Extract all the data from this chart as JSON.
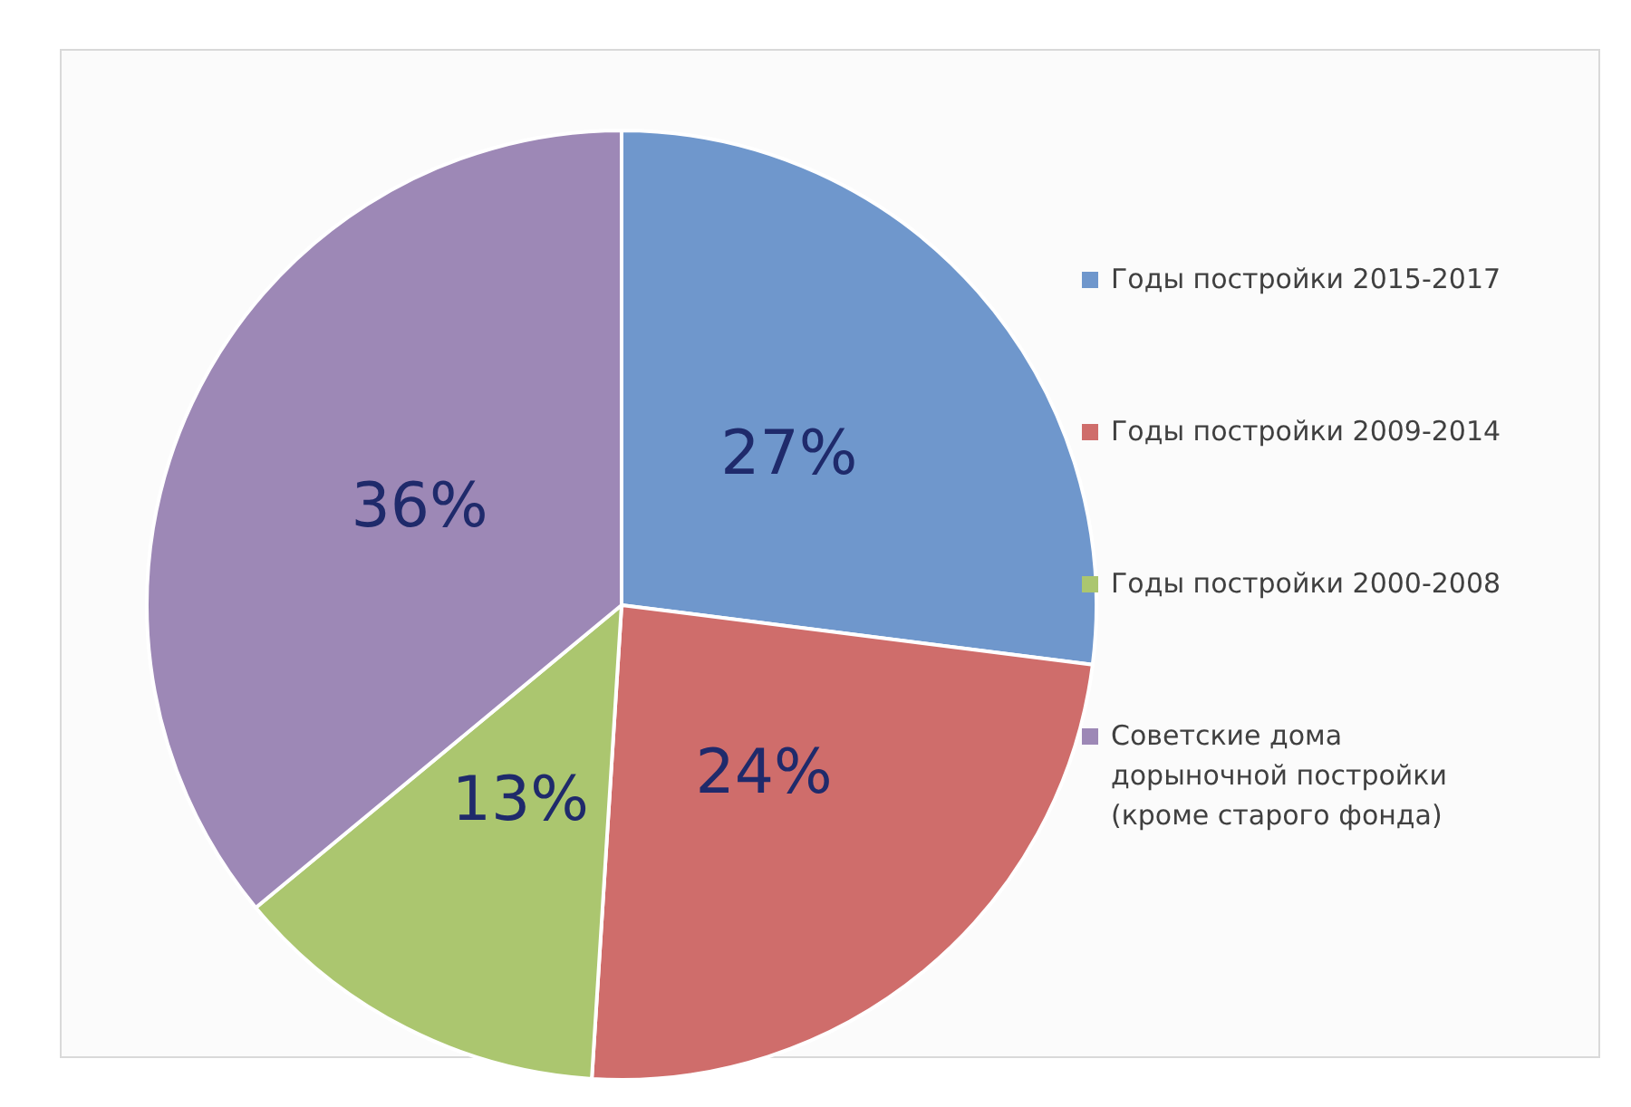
{
  "chart_data": {
    "type": "pie",
    "categories": [
      "Годы постройки 2015-2017",
      "Годы постройки 2009-2014",
      "Годы постройки 2000-2008",
      "Советские дома дорыночной постройки (кроме старого фонда)"
    ],
    "values": [
      27,
      24,
      13,
      36
    ],
    "colors": [
      "#6f97cc",
      "#cf6d6b",
      "#abc66f",
      "#9d88b6"
    ],
    "value_labels": [
      "27%",
      "24%",
      "13%",
      "36%"
    ],
    "legend": "right"
  }
}
